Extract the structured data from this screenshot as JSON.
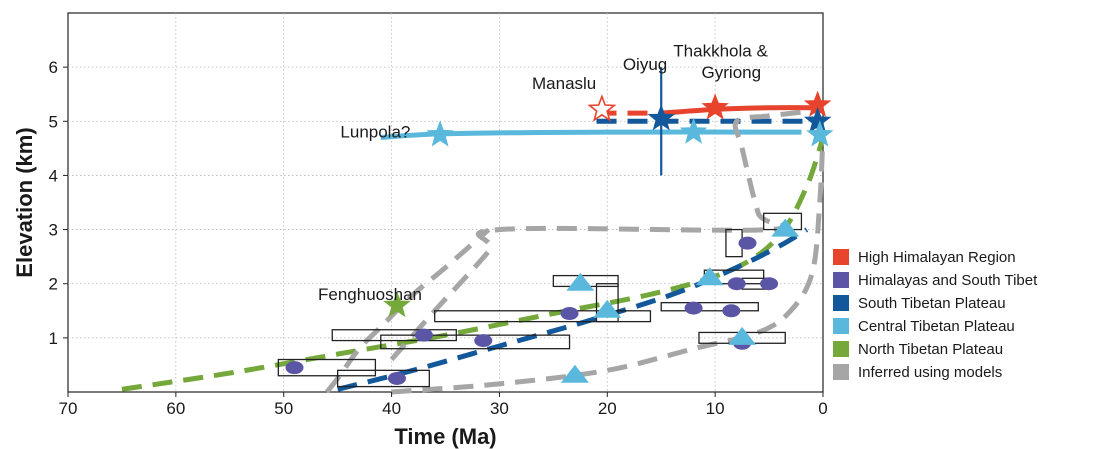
{
  "chart_data": {
    "type": "scatter",
    "xlabel": "Time (Ma)",
    "ylabel": "Elevation (km)",
    "xlim": [
      70,
      0
    ],
    "ylim": [
      0,
      7
    ],
    "x_reversed": true,
    "grid": true,
    "xticks": [
      "70",
      "60",
      "50",
      "40",
      "30",
      "20",
      "10",
      "0"
    ],
    "yticks": [
      "1",
      "2",
      "3",
      "4",
      "5",
      "6"
    ],
    "legend_position": "right",
    "legend": [
      {
        "label": "High Himalayan Region",
        "color": "#e8432d"
      },
      {
        "label": "Himalayas and South Tibet",
        "color": "#5a55a5"
      },
      {
        "label": "South Tibetan Plateau",
        "color": "#13589a"
      },
      {
        "label": "Central Tibetan Plateau",
        "color": "#5ab8dc"
      },
      {
        "label": "North Tibetan Plateau",
        "color": "#74a83a"
      },
      {
        "label": "Inferred using models",
        "color": "#a6a6a6"
      }
    ],
    "annotations": [
      {
        "text": "Thakkhola &",
        "x": 9.5,
        "y": 6.2
      },
      {
        "text": "Gyriong",
        "x": 8.5,
        "y": 5.8
      },
      {
        "text": "Oiyug",
        "x": 16.5,
        "y": 5.95
      },
      {
        "text": "Manaslu",
        "x": 24,
        "y": 5.6
      },
      {
        "text": "Lunpola?",
        "x": 41.5,
        "y": 4.7
      },
      {
        "text": "Fenghuoshan",
        "x": 42,
        "y": 1.7
      }
    ],
    "trend_lines": [
      {
        "series": "High Himalayan Region",
        "style": "solid",
        "points": [
          [
            15,
            5.15
          ],
          [
            10,
            5.22
          ],
          [
            5,
            5.25
          ],
          [
            0,
            5.25
          ]
        ]
      },
      {
        "series": "High Himalayan Region",
        "style": "dashed",
        "points": [
          [
            21,
            5.15
          ],
          [
            15,
            5.15
          ]
        ]
      },
      {
        "series": "Central Tibetan Plateau",
        "style": "solid",
        "points": [
          [
            41,
            4.7
          ],
          [
            35,
            4.77
          ],
          [
            20,
            4.8
          ],
          [
            2,
            4.8
          ]
        ]
      },
      {
        "series": "South Tibetan Plateau",
        "style": "dashed",
        "points": [
          [
            21,
            5.0
          ],
          [
            0,
            5.0
          ]
        ]
      },
      {
        "series": "North Tibetan Plateau",
        "style": "dashed",
        "points": [
          [
            65,
            0.05
          ],
          [
            55,
            0.35
          ],
          [
            45,
            0.7
          ],
          [
            35,
            1.05
          ],
          [
            25,
            1.45
          ],
          [
            15,
            1.85
          ],
          [
            8,
            2.3
          ],
          [
            4,
            2.9
          ],
          [
            1.5,
            3.8
          ],
          [
            0,
            4.7
          ]
        ]
      },
      {
        "series": "South Tibetan Plateau",
        "style": "dashed",
        "points": [
          [
            45,
            0.05
          ],
          [
            38,
            0.4
          ],
          [
            30,
            0.85
          ],
          [
            22,
            1.3
          ],
          [
            14,
            1.8
          ],
          [
            8,
            2.3
          ],
          [
            4,
            2.7
          ],
          [
            1.5,
            3.0
          ]
        ]
      },
      {
        "series": "Inferred using models",
        "style": "dashed",
        "points": [
          [
            40,
            0.6
          ],
          [
            36,
            1.5
          ],
          [
            31,
            2.6
          ],
          [
            30,
            3.0
          ],
          [
            5,
            3.0
          ],
          [
            6,
            3.3
          ],
          [
            7.5,
            4.5
          ],
          [
            8,
            5.0
          ],
          [
            5,
            5.1
          ],
          [
            0.5,
            5.2
          ]
        ]
      },
      {
        "series": "Inferred using models",
        "style": "dashed",
        "points": [
          [
            46,
            0.0
          ],
          [
            45,
            0.25
          ],
          [
            43,
            0.8
          ],
          [
            41,
            1.2
          ],
          [
            38,
            1.8
          ],
          [
            35,
            2.3
          ],
          [
            31,
            3.0
          ]
        ]
      },
      {
        "series": "Inferred using models",
        "style": "dashed",
        "points": [
          [
            40,
            0.0
          ],
          [
            30,
            0.15
          ],
          [
            20,
            0.4
          ],
          [
            12,
            0.8
          ],
          [
            6,
            1.1
          ],
          [
            3,
            1.5
          ],
          [
            1,
            2.2
          ],
          [
            0.3,
            3.5
          ],
          [
            0,
            4.8
          ]
        ]
      }
    ],
    "series": [
      {
        "series": "High Himalayan Region",
        "marker": "star",
        "points": [
          [
            10,
            5.25
          ],
          [
            0.5,
            5.3
          ]
        ]
      },
      {
        "series": "High Himalayan Region",
        "marker": "open-star",
        "points": [
          [
            20.5,
            5.22
          ]
        ]
      },
      {
        "series": "South Tibetan Plateau",
        "marker": "star",
        "points": [
          [
            15,
            5.05
          ],
          [
            0.5,
            5.0
          ]
        ]
      },
      {
        "series": "Central Tibetan Plateau",
        "marker": "star",
        "points": [
          [
            35.5,
            4.75
          ],
          [
            12,
            4.8
          ],
          [
            0.3,
            4.75
          ]
        ]
      },
      {
        "series": "North Tibetan Plateau",
        "marker": "star",
        "points": [
          [
            39.5,
            1.6
          ]
        ]
      },
      {
        "series": "Himalayas and South Tibet",
        "marker": "ellipse",
        "points": [
          [
            49,
            0.45
          ],
          [
            39.5,
            0.25
          ],
          [
            37,
            1.05
          ],
          [
            31.5,
            0.95
          ],
          [
            23.5,
            1.45
          ],
          [
            12,
            1.55
          ],
          [
            8.5,
            1.5
          ],
          [
            7,
            2.75
          ],
          [
            8,
            2.0
          ],
          [
            5,
            2.0
          ],
          [
            7.5,
            0.9
          ]
        ]
      },
      {
        "series": "Central Tibetan Plateau",
        "marker": "triangle",
        "points": [
          [
            22.5,
            2.0
          ],
          [
            20,
            1.5
          ],
          [
            10.5,
            2.1
          ],
          [
            7.5,
            1.0
          ],
          [
            3.5,
            3.0
          ],
          [
            23,
            0.3
          ]
        ]
      }
    ],
    "error_boxes": [
      {
        "x": [
          50.5,
          41.5
        ],
        "y": [
          0.3,
          0.6
        ]
      },
      {
        "x": [
          45,
          36.5
        ],
        "y": [
          0.1,
          0.4
        ]
      },
      {
        "x": [
          45.5,
          34
        ],
        "y": [
          0.95,
          1.15
        ]
      },
      {
        "x": [
          41,
          23.5
        ],
        "y": [
          0.8,
          1.05
        ]
      },
      {
        "x": [
          36,
          16
        ],
        "y": [
          1.3,
          1.5
        ]
      },
      {
        "x": [
          25,
          19
        ],
        "y": [
          1.95,
          2.15
        ]
      },
      {
        "x": [
          21,
          19
        ],
        "y": [
          1.3,
          2.0
        ]
      },
      {
        "x": [
          15,
          6
        ],
        "y": [
          1.5,
          1.65
        ]
      },
      {
        "x": [
          11,
          5.5
        ],
        "y": [
          2.0,
          2.25
        ]
      },
      {
        "x": [
          7.5,
          5
        ],
        "y": [
          1.9,
          2.1
        ]
      },
      {
        "x": [
          9,
          7.5
        ],
        "y": [
          2.5,
          3.0
        ]
      },
      {
        "x": [
          5.5,
          2
        ],
        "y": [
          3.0,
          3.3
        ]
      },
      {
        "x": [
          11.5,
          3.5
        ],
        "y": [
          0.9,
          1.1
        ]
      }
    ],
    "error_bars": [
      {
        "x": 15,
        "y": 5.05,
        "xerr": [
          22,
          0
        ],
        "yerr": [
          4.0,
          6.0
        ]
      },
      {
        "x": 0.5,
        "y": 5.0,
        "xerr": [
          2,
          0
        ],
        "yerr": [
          4.8,
          5.2
        ]
      }
    ]
  }
}
